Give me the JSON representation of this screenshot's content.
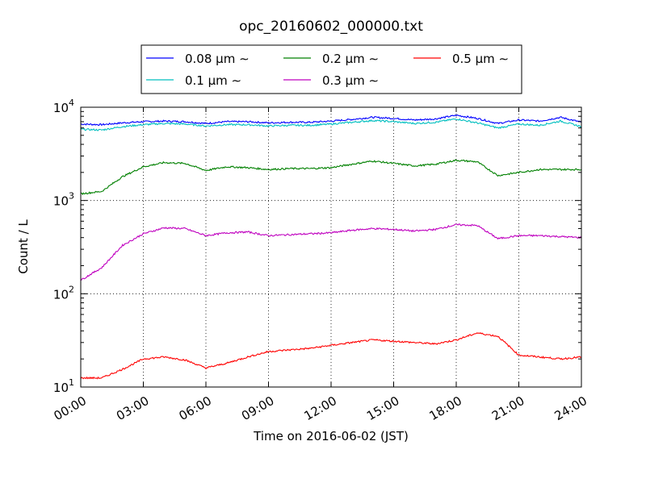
{
  "chart_data": {
    "type": "line",
    "title": "opc_20160602_000000.txt",
    "xlabel": "Time on 2016-06-02 (JST)",
    "ylabel": "Count / L",
    "y_scale": "log",
    "ylim": [
      10,
      10000
    ],
    "xlim": [
      "00:00",
      "24:00"
    ],
    "grid": true,
    "legend_placement": "top-center",
    "x_ticks": [
      "00:00",
      "03:00",
      "06:00",
      "09:00",
      "12:00",
      "15:00",
      "18:00",
      "21:00",
      "24:00"
    ],
    "y_ticks": [
      {
        "base": "10",
        "exp": "1"
      },
      {
        "base": "10",
        "exp": "2"
      },
      {
        "base": "10",
        "exp": "3"
      },
      {
        "base": "10",
        "exp": "4"
      }
    ],
    "x": [
      "00:00",
      "01:00",
      "02:00",
      "03:00",
      "04:00",
      "05:00",
      "06:00",
      "07:00",
      "08:00",
      "09:00",
      "10:00",
      "11:00",
      "12:00",
      "13:00",
      "14:00",
      "15:00",
      "16:00",
      "17:00",
      "18:00",
      "19:00",
      "20:00",
      "21:00",
      "22:00",
      "23:00",
      "24:00"
    ],
    "series": [
      {
        "name": "0.08 μm ∼",
        "color": "#0000ff",
        "values": [
          6600,
          6500,
          6800,
          7000,
          7100,
          7000,
          6700,
          7000,
          7000,
          6800,
          6900,
          6900,
          7100,
          7400,
          7800,
          7600,
          7300,
          7500,
          8200,
          7600,
          6700,
          7300,
          7100,
          7800,
          6900
        ]
      },
      {
        "name": "0.1 μm ∼",
        "color": "#00bfbf",
        "values": [
          5800,
          5700,
          6200,
          6500,
          6700,
          6600,
          6300,
          6500,
          6500,
          6300,
          6400,
          6400,
          6600,
          6900,
          7200,
          7000,
          6700,
          6900,
          7500,
          6800,
          6000,
          6600,
          6400,
          7100,
          6200
        ]
      },
      {
        "name": "0.2 μm ∼",
        "color": "#008000",
        "values": [
          1180,
          1250,
          1800,
          2300,
          2550,
          2500,
          2100,
          2300,
          2250,
          2150,
          2200,
          2200,
          2250,
          2450,
          2650,
          2500,
          2350,
          2450,
          2700,
          2600,
          1850,
          2000,
          2150,
          2150,
          2150
        ]
      },
      {
        "name": "0.3 μm ∼",
        "color": "#bf00bf",
        "values": [
          140,
          190,
          330,
          440,
          510,
          500,
          420,
          450,
          460,
          420,
          430,
          440,
          450,
          480,
          500,
          490,
          470,
          490,
          550,
          540,
          390,
          420,
          420,
          410,
          400
        ]
      },
      {
        "name": "0.5 μm ∼",
        "color": "#ff0000",
        "values": [
          12.5,
          12.5,
          15.5,
          20,
          21,
          19.5,
          16,
          18,
          21,
          24,
          25,
          26,
          28,
          30,
          32,
          31,
          30,
          29,
          32,
          38,
          35,
          22,
          21,
          20,
          21
        ]
      }
    ]
  }
}
